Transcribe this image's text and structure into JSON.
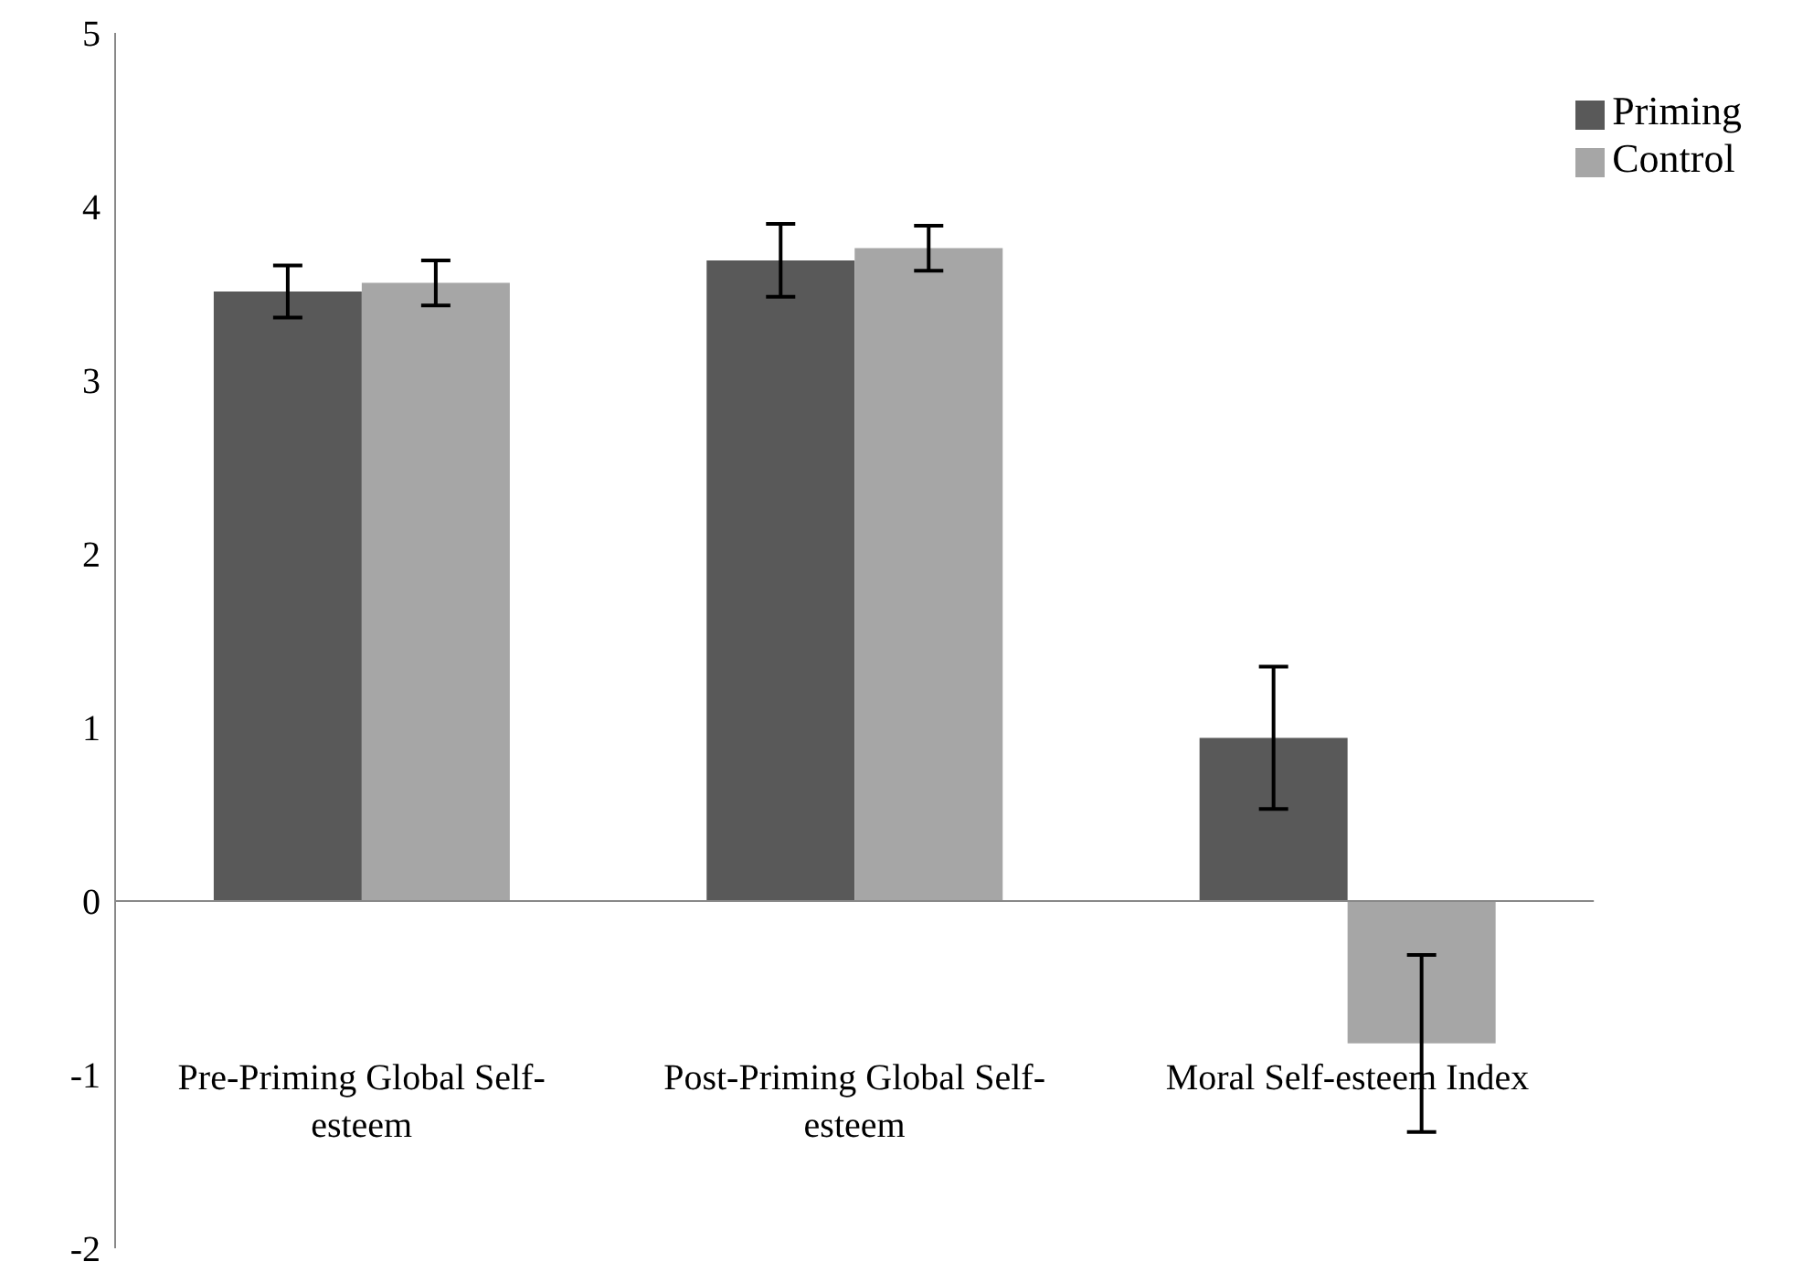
{
  "chart_data": {
    "type": "bar",
    "categories": [
      "Pre-Priming  Global Self-esteem",
      "Post-Priming  Global Self-esteem",
      "Moral Self-esteem Index"
    ],
    "series": [
      {
        "name": "Priming",
        "color": "#595959",
        "values": [
          3.51,
          3.69,
          0.94
        ],
        "errors": [
          0.15,
          0.21,
          0.41
        ]
      },
      {
        "name": "Control",
        "color": "#a6a6a6",
        "values": [
          3.56,
          3.76,
          -0.82
        ],
        "errors": [
          0.13,
          0.13,
          0.51
        ]
      }
    ],
    "ylim": [
      -2,
      5
    ],
    "yticks": [
      -2,
      -1,
      0,
      1,
      2,
      3,
      4,
      5
    ],
    "grid": false,
    "ref_lines": [
      {
        "axis": "y",
        "value": 0
      }
    ],
    "legend": "top right"
  }
}
